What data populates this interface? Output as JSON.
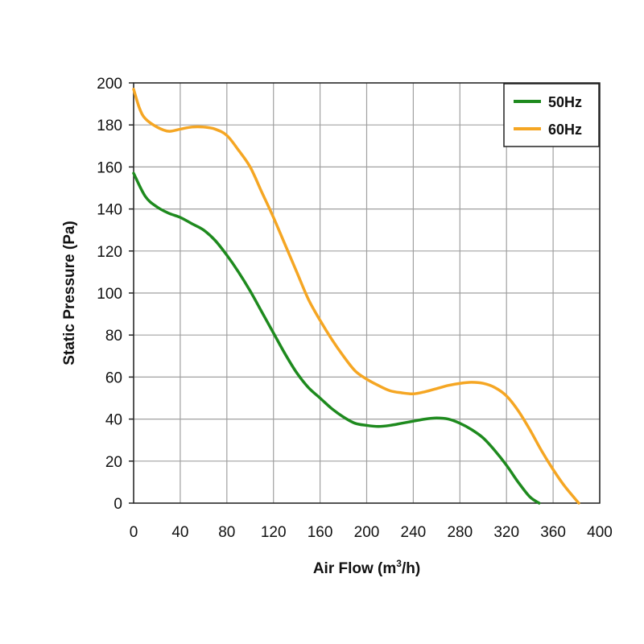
{
  "chart_data": {
    "type": "line",
    "title": "",
    "xlabel": "Air Flow (m",
    "xlabel_superscript": "3",
    "xlabel_suffix": "/h)",
    "ylabel": "Static Pressure (Pa)",
    "xlim": [
      0,
      400
    ],
    "ylim": [
      0,
      200
    ],
    "x_ticks": [
      "0",
      "40",
      "80",
      "120",
      "160",
      "200",
      "240",
      "280",
      "320",
      "360",
      "400"
    ],
    "y_ticks": [
      "0",
      "20",
      "40",
      "60",
      "80",
      "100",
      "120",
      "140",
      "160",
      "180",
      "200"
    ],
    "x_tick_values": [
      0,
      40,
      80,
      120,
      160,
      200,
      240,
      280,
      320,
      360,
      400
    ],
    "y_tick_values": [
      0,
      20,
      40,
      60,
      80,
      100,
      120,
      140,
      160,
      180,
      200
    ],
    "grid": true,
    "legend_position": "top-right",
    "series": [
      {
        "name": "50Hz",
        "color": "#1e8a1e",
        "x": [
          0,
          10,
          20,
          30,
          40,
          50,
          60,
          70,
          80,
          90,
          100,
          110,
          120,
          130,
          140,
          150,
          160,
          170,
          180,
          190,
          200,
          210,
          220,
          230,
          240,
          250,
          260,
          270,
          280,
          290,
          300,
          310,
          320,
          330,
          340,
          348
        ],
        "y": [
          157,
          146,
          141,
          138,
          136,
          133,
          130,
          125,
          118,
          110,
          101,
          91,
          81,
          71,
          62,
          55,
          50,
          45,
          41,
          38,
          37,
          36.5,
          37,
          38,
          39,
          40,
          40.5,
          40,
          38,
          35,
          31,
          25,
          18,
          10,
          3,
          0
        ]
      },
      {
        "name": "60Hz",
        "color": "#f5a623",
        "x": [
          0,
          5,
          10,
          20,
          30,
          40,
          50,
          60,
          70,
          80,
          90,
          100,
          110,
          120,
          130,
          140,
          150,
          160,
          170,
          180,
          190,
          200,
          210,
          220,
          230,
          240,
          250,
          260,
          270,
          280,
          290,
          300,
          310,
          320,
          330,
          340,
          350,
          360,
          370,
          382
        ],
        "y": [
          197,
          188,
          183,
          179,
          177,
          178,
          179,
          179,
          178,
          175,
          168,
          160,
          148,
          136,
          123,
          110,
          97,
          87,
          78,
          70,
          63,
          59,
          56,
          53.5,
          52.5,
          52,
          53,
          54.5,
          56,
          57,
          57.5,
          57,
          55,
          51,
          44,
          35,
          25,
          16,
          8,
          0
        ]
      }
    ]
  }
}
